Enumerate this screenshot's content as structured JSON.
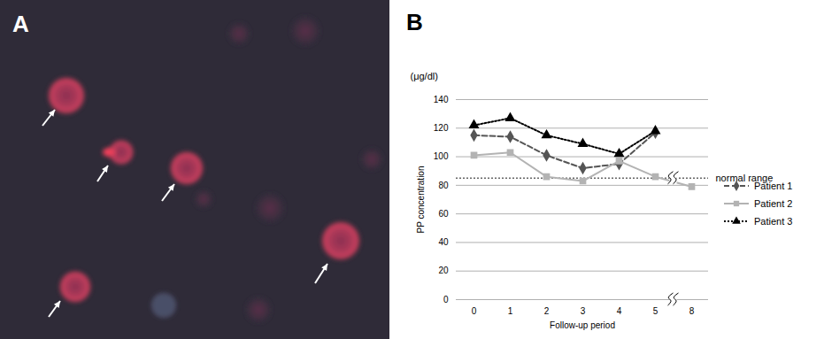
{
  "panel_labels": [
    "A",
    "B"
  ],
  "chart_data": {
    "type": "line",
    "ylabel": "PP concentration",
    "yunit": "(μg/dl)",
    "xlabel": "Follow-up period",
    "categories": [
      "0",
      "1",
      "2",
      "3",
      "4",
      "5",
      "8"
    ],
    "series": [
      {
        "name": "Patient 1",
        "color": "#555555",
        "marker": "diamond",
        "line_style": "dashed",
        "values": [
          115,
          114,
          101,
          92,
          95,
          117,
          null
        ]
      },
      {
        "name": "Patient 2",
        "color": "#b3b3b3",
        "marker": "square",
        "line_style": "solid",
        "values": [
          101,
          103,
          86,
          83,
          97,
          86,
          79
        ]
      },
      {
        "name": "Patient 3",
        "color": "#000000",
        "marker": "triangle",
        "line_style": "dotted",
        "values": [
          122,
          127,
          115,
          109,
          102,
          118,
          null
        ]
      }
    ],
    "annotations": [
      {
        "y": 85,
        "text": "normal range"
      }
    ],
    "ylim": [
      0,
      140
    ],
    "yticks": [
      0,
      20,
      40,
      60,
      80,
      100,
      120,
      140
    ],
    "grid": true,
    "legend": "right"
  }
}
